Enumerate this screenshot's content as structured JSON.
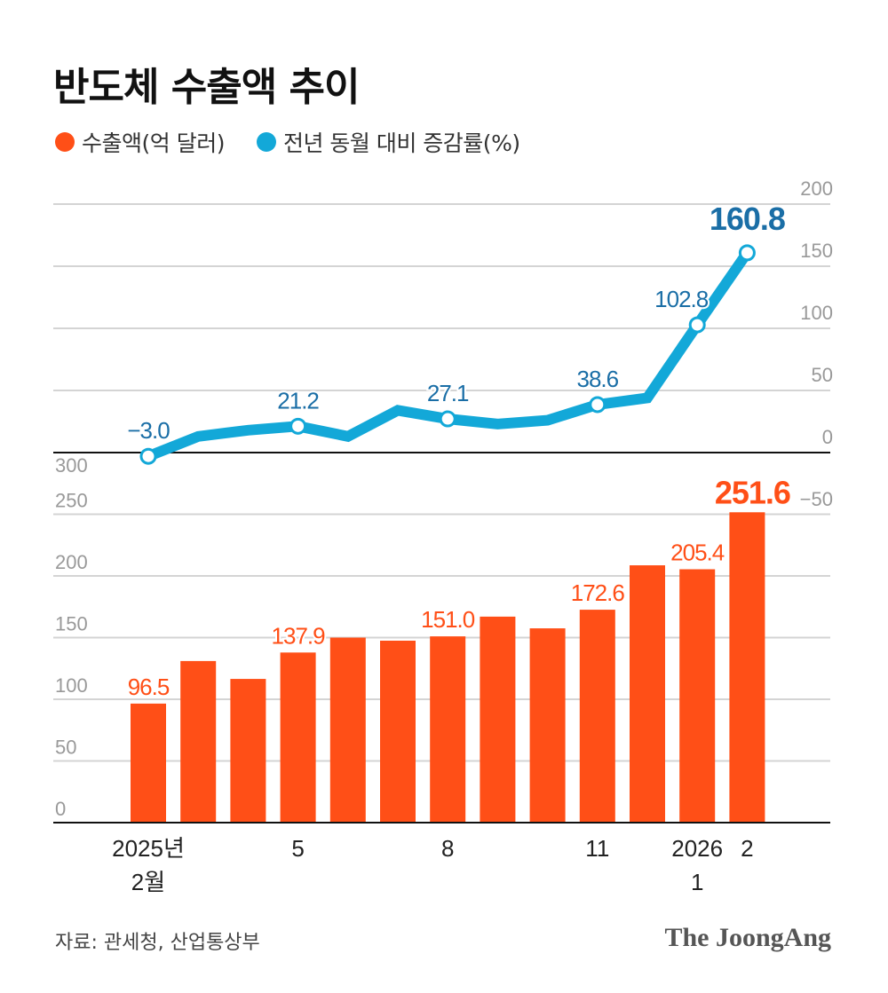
{
  "chart_data": {
    "type": "bar+line",
    "title": "반도체 수출액 추이",
    "categories": [
      "2025-02",
      "2025-03",
      "2025-04",
      "2025-05",
      "2025-06",
      "2025-07",
      "2025-08",
      "2025-09",
      "2025-10",
      "2025-11",
      "2025-12",
      "2026-01",
      "2026-02"
    ],
    "x_tick_labels": [
      {
        "index": 0,
        "lines": [
          "2025년",
          "2월"
        ]
      },
      {
        "index": 3,
        "lines": [
          "5"
        ]
      },
      {
        "index": 6,
        "lines": [
          "8"
        ]
      },
      {
        "index": 9,
        "lines": [
          "11"
        ]
      },
      {
        "index": 11,
        "lines": [
          "2026",
          "1"
        ]
      },
      {
        "index": 12,
        "lines": [
          "2"
        ]
      }
    ],
    "series": [
      {
        "name": "수출액(억 달러)",
        "type": "bar",
        "axis": "left",
        "color": "#ff4f17",
        "values": [
          96.5,
          131,
          116.5,
          137.9,
          150,
          147.5,
          151.0,
          167,
          157.5,
          172.6,
          208.6,
          205.4,
          251.6
        ],
        "labeled": [
          0,
          3,
          6,
          9,
          11,
          12
        ],
        "labels": [
          "96.5",
          "137.9",
          "151.0",
          "172.6",
          "205.4",
          "251.6"
        ]
      },
      {
        "name": "전년 동월 대비 증감률(%)",
        "type": "line",
        "axis": "right",
        "color": "#13a8d8",
        "values": [
          -3.0,
          13,
          18,
          21.2,
          13,
          34,
          27.1,
          23,
          26,
          38.6,
          44,
          102.8,
          160.8
        ],
        "labeled": [
          0,
          3,
          6,
          9,
          11,
          12
        ],
        "labels": [
          "−3.0",
          "21.2",
          "27.1",
          "38.6",
          "102.8",
          "160.8"
        ]
      }
    ],
    "left_axis": {
      "ticks": [
        "0",
        "50",
        "100",
        "150",
        "200",
        "250",
        "300"
      ],
      "range": [
        0,
        300
      ]
    },
    "right_axis": {
      "ticks": [
        "−50",
        "0",
        "50",
        "100",
        "150",
        "200"
      ],
      "range": [
        -50,
        200
      ]
    },
    "grid": true,
    "legend": "top-left"
  },
  "source": "자료: 관세청, 산업통상부",
  "logo": "The JoongAng"
}
